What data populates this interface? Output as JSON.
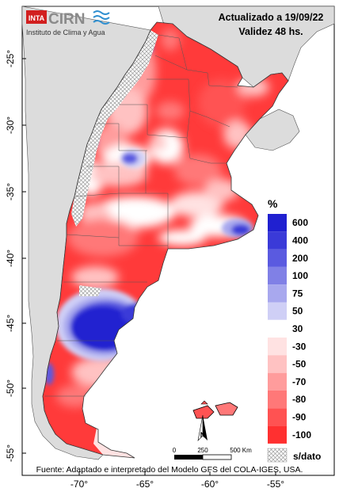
{
  "header": {
    "logo_inta": "INTA",
    "logo_cirn": "CIRN",
    "institute": "Instituto de Clima y Agua",
    "updated": "Actualizado a 19/09/22",
    "validity": "Validez 48 hs."
  },
  "axes": {
    "lat_ticks": [
      "-25°",
      "-30°",
      "-35°",
      "-40°",
      "-45°",
      "-50°",
      "-55°"
    ],
    "lon_ticks": [
      "-70°",
      "-65°",
      "-60°",
      "-55°"
    ]
  },
  "legend": {
    "unit": "%",
    "items": [
      {
        "label": "600",
        "color": "#2020d0"
      },
      {
        "label": "400",
        "color": "#3a3ad8"
      },
      {
        "label": "200",
        "color": "#5a5ae0"
      },
      {
        "label": "100",
        "color": "#8080e6"
      },
      {
        "label": "75",
        "color": "#a8a8ee"
      },
      {
        "label": "50",
        "color": "#cfcff6"
      },
      {
        "label": "30",
        "color": "#ffffff"
      },
      {
        "label": "-30",
        "color": "#ffe2e2"
      },
      {
        "label": "-50",
        "color": "#ffc2c2"
      },
      {
        "label": "-70",
        "color": "#ff9c9c"
      },
      {
        "label": "-80",
        "color": "#ff7878"
      },
      {
        "label": "-90",
        "color": "#ff5252"
      },
      {
        "label": "-100",
        "color": "#ff3030"
      }
    ],
    "nodata": "s/dato"
  },
  "scale": {
    "zero": "0",
    "mid": "250",
    "end": "500 Km"
  },
  "north": "N",
  "source": "Fuente: Adaptado e interpretado del Modelo GFS del COLA-IGES, USA."
}
